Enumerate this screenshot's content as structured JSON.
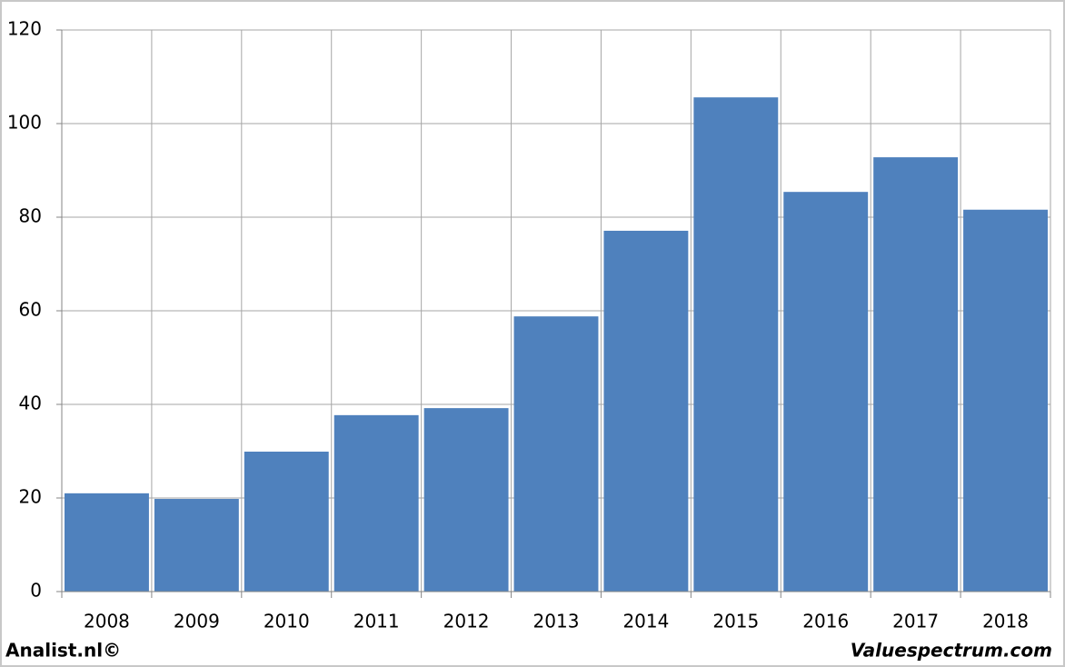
{
  "chart_data": {
    "type": "bar",
    "categories": [
      "2008",
      "2009",
      "2010",
      "2011",
      "2012",
      "2013",
      "2014",
      "2015",
      "2016",
      "2017",
      "2018"
    ],
    "values": [
      21.0,
      19.8,
      29.9,
      37.7,
      39.2,
      58.8,
      77.1,
      105.6,
      85.4,
      92.8,
      81.6
    ],
    "color": "#4f81bd",
    "ylim": [
      0,
      120
    ],
    "yticks": [
      0,
      20,
      40,
      60,
      80,
      100,
      120
    ],
    "grid": true,
    "annotations": [
      "Analist.nl©",
      "Valuespectrum.com"
    ]
  }
}
